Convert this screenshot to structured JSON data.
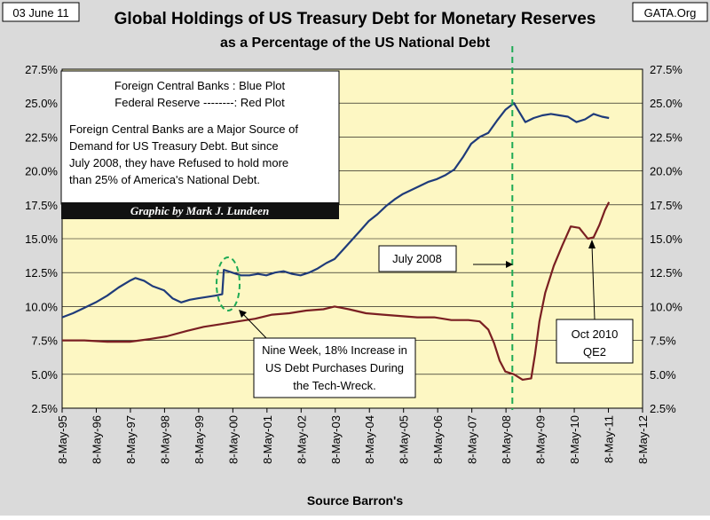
{
  "header": {
    "date": "03 June 11",
    "source_site": "GATA.Org",
    "title": "Global Holdings of US Treasury Debt for Monetary Reserves",
    "subtitle": "as a Percentage of the US National Debt",
    "footer": "Source Barron's"
  },
  "colors": {
    "plot_bg": "#fdf7c3",
    "foreign": "#1f3b7a",
    "fed": "#7a1f22",
    "marker": "#1faa55",
    "frame_bg": "#dadada",
    "credit_bg": "#111111"
  },
  "legend_box": {
    "line1": "Foreign Central Banks : Blue Plot",
    "line2": "Federal Reserve --------: Red Plot",
    "para": [
      "Foreign Central Banks are a Major Source of",
      "Demand for US Treasury Debt.  But since",
      "July 2008, they have Refused to hold more",
      "than 25% of America's National Debt."
    ]
  },
  "credit": "Graphic by Mark J. Lundeen",
  "annotations": {
    "july2008": "July 2008",
    "techwreck": [
      "Nine Week, 18% Increase in",
      "US Debt Purchases During",
      "the Tech-Wreck."
    ],
    "qe2": [
      "Oct 2010",
      "QE2"
    ]
  },
  "chart_data": {
    "type": "line",
    "title": "Global Holdings of US Treasury Debt for Monetary Reserves",
    "subtitle": "as a Percentage of the US National Debt",
    "xlabel": "Source Barron's",
    "ylabel": "",
    "x_tick_labels": [
      "8-May-95",
      "8-May-96",
      "8-May-97",
      "8-May-98",
      "8-May-99",
      "8-May-00",
      "8-May-01",
      "8-May-02",
      "8-May-03",
      "8-May-04",
      "8-May-05",
      "8-May-06",
      "8-May-07",
      "8-May-08",
      "8-May-09",
      "8-May-10",
      "8-May-11",
      "8-May-12"
    ],
    "y_tick_labels": [
      "2.5%",
      "5.0%",
      "7.5%",
      "10.0%",
      "12.5%",
      "15.0%",
      "17.5%",
      "20.0%",
      "22.5%",
      "25.0%",
      "27.5%"
    ],
    "ylim": [
      2.5,
      27.5
    ],
    "xlim": [
      "1995-05-08",
      "2012-05-08"
    ],
    "grid": "horizontal",
    "vertical_marker": "2008-07-15",
    "series": [
      {
        "name": "Foreign Central Banks",
        "color": "#1f3b7a",
        "points": [
          [
            "1995-05-08",
            9.2
          ],
          [
            "1995-09-01",
            9.5
          ],
          [
            "1996-01-01",
            9.9
          ],
          [
            "1996-05-01",
            10.3
          ],
          [
            "1996-09-01",
            10.8
          ],
          [
            "1997-01-01",
            11.4
          ],
          [
            "1997-05-01",
            11.9
          ],
          [
            "1997-07-01",
            12.1
          ],
          [
            "1997-10-01",
            11.9
          ],
          [
            "1998-01-01",
            11.5
          ],
          [
            "1998-05-01",
            11.2
          ],
          [
            "1998-08-01",
            10.6
          ],
          [
            "1998-11-01",
            10.3
          ],
          [
            "1999-02-01",
            10.5
          ],
          [
            "1999-05-01",
            10.6
          ],
          [
            "1999-08-01",
            10.7
          ],
          [
            "1999-11-01",
            10.8
          ],
          [
            "2000-01-15",
            10.9
          ],
          [
            "2000-02-01",
            12.7
          ],
          [
            "2000-05-01",
            12.5
          ],
          [
            "2000-08-01",
            12.3
          ],
          [
            "2000-11-01",
            12.3
          ],
          [
            "2001-02-01",
            12.4
          ],
          [
            "2001-05-01",
            12.3
          ],
          [
            "2001-08-01",
            12.5
          ],
          [
            "2001-11-01",
            12.6
          ],
          [
            "2002-02-01",
            12.4
          ],
          [
            "2002-05-01",
            12.3
          ],
          [
            "2002-08-01",
            12.5
          ],
          [
            "2002-11-01",
            12.8
          ],
          [
            "2003-02-01",
            13.2
          ],
          [
            "2003-05-01",
            13.5
          ],
          [
            "2003-08-01",
            14.2
          ],
          [
            "2003-11-01",
            14.9
          ],
          [
            "2004-02-01",
            15.6
          ],
          [
            "2004-05-01",
            16.3
          ],
          [
            "2004-08-01",
            16.8
          ],
          [
            "2004-11-01",
            17.4
          ],
          [
            "2005-02-01",
            17.9
          ],
          [
            "2005-05-01",
            18.3
          ],
          [
            "2005-08-01",
            18.6
          ],
          [
            "2005-11-01",
            18.9
          ],
          [
            "2006-02-01",
            19.2
          ],
          [
            "2006-05-01",
            19.4
          ],
          [
            "2006-08-01",
            19.7
          ],
          [
            "2006-11-01",
            20.1
          ],
          [
            "2007-02-01",
            21.0
          ],
          [
            "2007-05-01",
            22.0
          ],
          [
            "2007-08-01",
            22.5
          ],
          [
            "2007-11-01",
            22.8
          ],
          [
            "2008-02-01",
            23.7
          ],
          [
            "2008-05-01",
            24.5
          ],
          [
            "2008-08-01",
            25.0
          ],
          [
            "2008-10-01",
            24.3
          ],
          [
            "2008-12-01",
            23.6
          ],
          [
            "2009-03-01",
            23.9
          ],
          [
            "2009-06-01",
            24.1
          ],
          [
            "2009-09-01",
            24.2
          ],
          [
            "2009-12-01",
            24.1
          ],
          [
            "2010-03-01",
            24.0
          ],
          [
            "2010-06-01",
            23.6
          ],
          [
            "2010-09-01",
            23.8
          ],
          [
            "2010-12-01",
            24.2
          ],
          [
            "2011-03-01",
            24.0
          ],
          [
            "2011-05-15",
            23.9
          ]
        ]
      },
      {
        "name": "Federal Reserve",
        "color": "#7a1f22",
        "points": [
          [
            "1995-05-08",
            7.5
          ],
          [
            "1996-01-01",
            7.5
          ],
          [
            "1996-09-01",
            7.4
          ],
          [
            "1997-05-01",
            7.4
          ],
          [
            "1997-12-01",
            7.6
          ],
          [
            "1998-06-01",
            7.8
          ],
          [
            "1999-01-01",
            8.2
          ],
          [
            "1999-07-01",
            8.5
          ],
          [
            "2000-01-01",
            8.7
          ],
          [
            "2000-07-01",
            8.9
          ],
          [
            "2001-01-01",
            9.1
          ],
          [
            "2001-07-01",
            9.4
          ],
          [
            "2002-01-01",
            9.5
          ],
          [
            "2002-07-01",
            9.7
          ],
          [
            "2003-01-01",
            9.8
          ],
          [
            "2003-05-01",
            10.0
          ],
          [
            "2003-10-01",
            9.8
          ],
          [
            "2004-04-01",
            9.5
          ],
          [
            "2004-10-01",
            9.4
          ],
          [
            "2005-04-01",
            9.3
          ],
          [
            "2005-10-01",
            9.2
          ],
          [
            "2006-04-01",
            9.2
          ],
          [
            "2006-10-01",
            9.0
          ],
          [
            "2007-04-01",
            9.0
          ],
          [
            "2007-08-01",
            8.9
          ],
          [
            "2007-11-01",
            8.3
          ],
          [
            "2008-01-01",
            7.3
          ],
          [
            "2008-03-01",
            6.0
          ],
          [
            "2008-05-01",
            5.2
          ],
          [
            "2008-08-01",
            5.0
          ],
          [
            "2008-11-01",
            4.6
          ],
          [
            "2009-02-01",
            4.7
          ],
          [
            "2009-03-15",
            6.5
          ],
          [
            "2009-05-01",
            8.9
          ],
          [
            "2009-07-01",
            11.0
          ],
          [
            "2009-10-01",
            13.0
          ],
          [
            "2010-01-01",
            14.5
          ],
          [
            "2010-04-01",
            15.9
          ],
          [
            "2010-07-01",
            15.8
          ],
          [
            "2010-10-01",
            15.0
          ],
          [
            "2010-12-01",
            15.1
          ],
          [
            "2011-02-01",
            16.0
          ],
          [
            "2011-04-01",
            17.1
          ],
          [
            "2011-05-15",
            17.7
          ]
        ]
      }
    ]
  }
}
